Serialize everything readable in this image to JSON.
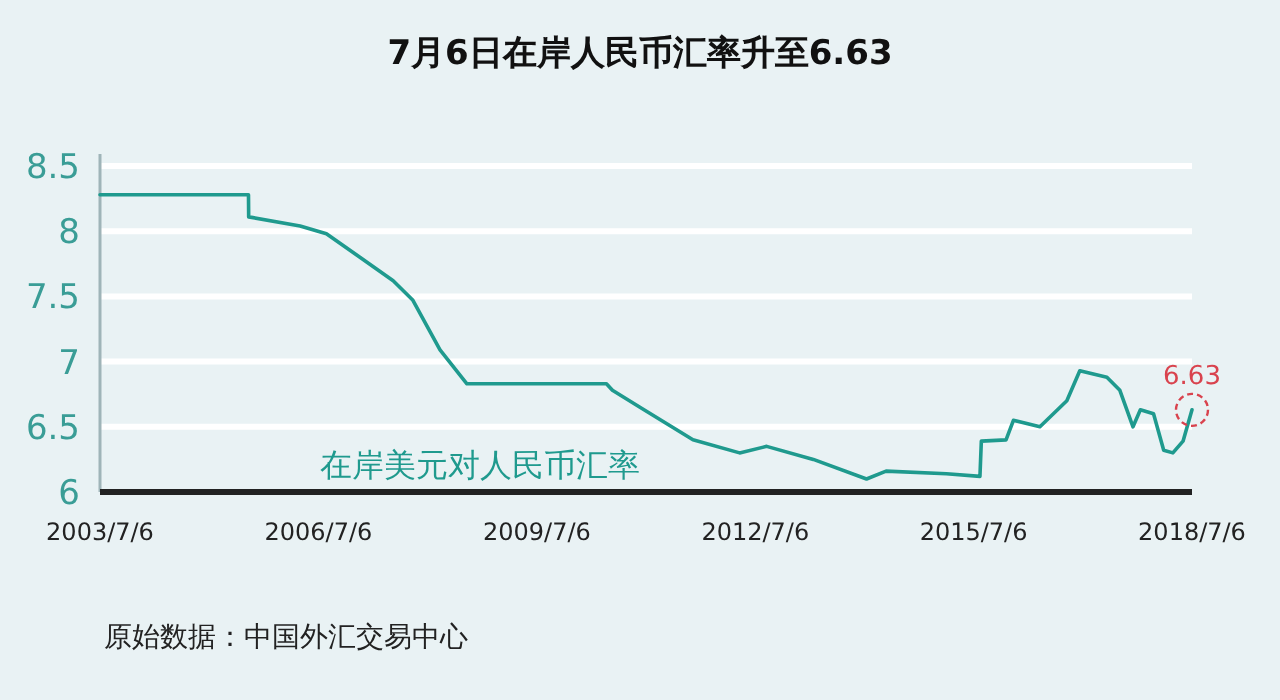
{
  "chart_data": {
    "type": "line",
    "title": "7月6日在岸人民币汇率升至6.63",
    "x": [
      "2003-07-06",
      "2005-07-20",
      "2005-07-21",
      "2006-04-05",
      "2006-08-15",
      "2007-01-30",
      "2007-07-16",
      "2007-10-23",
      "2008-03-07",
      "2008-07-20",
      "2010-06-20",
      "2010-07-20",
      "2010-12-05",
      "2011-08-28",
      "2012-04-18",
      "2012-09-01",
      "2013-04-23",
      "2014-01-15",
      "2014-04-23",
      "2015-02-20",
      "2015-08-07",
      "2015-08-14",
      "2015-12-16",
      "2016-01-22",
      "2016-06-03",
      "2016-10-16",
      "2016-12-20",
      "2017-05-05",
      "2017-07-09",
      "2017-09-13",
      "2017-10-20",
      "2017-12-25",
      "2018-02-14",
      "2018-04-01",
      "2018-05-22",
      "2018-07-06"
    ],
    "series": [
      {
        "name": "在岸美元对人民币汇率",
        "color": "#1f9a8e",
        "values": [
          8.28,
          8.28,
          8.11,
          8.04,
          7.98,
          7.8,
          7.62,
          7.47,
          7.09,
          6.83,
          6.83,
          6.78,
          6.65,
          6.4,
          6.3,
          6.35,
          6.25,
          6.1,
          6.16,
          6.14,
          6.12,
          6.39,
          6.4,
          6.55,
          6.5,
          6.7,
          6.93,
          6.88,
          6.78,
          6.5,
          6.63,
          6.6,
          6.32,
          6.3,
          6.39,
          6.63
        ]
      }
    ],
    "xlim": [
      "2003-07-06",
      "2018-07-06"
    ],
    "xticks": [
      {
        "value": "2003-07-06",
        "label": "2003/7/6"
      },
      {
        "value": "2006-07-06",
        "label": "2006/7/6"
      },
      {
        "value": "2009-07-06",
        "label": "2009/7/6"
      },
      {
        "value": "2012-07-06",
        "label": "2012/7/6"
      },
      {
        "value": "2015-07-06",
        "label": "2015/7/6"
      },
      {
        "value": "2018-07-06",
        "label": "2018/7/6"
      }
    ],
    "ylim": [
      6,
      8.5
    ],
    "yticks": [
      6,
      6.5,
      7,
      7.5,
      8,
      8.5
    ],
    "grid": "y",
    "legend": false,
    "line_style": "solid",
    "marker": "none",
    "annotations": [
      {
        "text": "6.63",
        "x": "2018-07-06",
        "y": 6.63
      },
      "原始数据：中国外汇交易中心"
    ]
  }
}
